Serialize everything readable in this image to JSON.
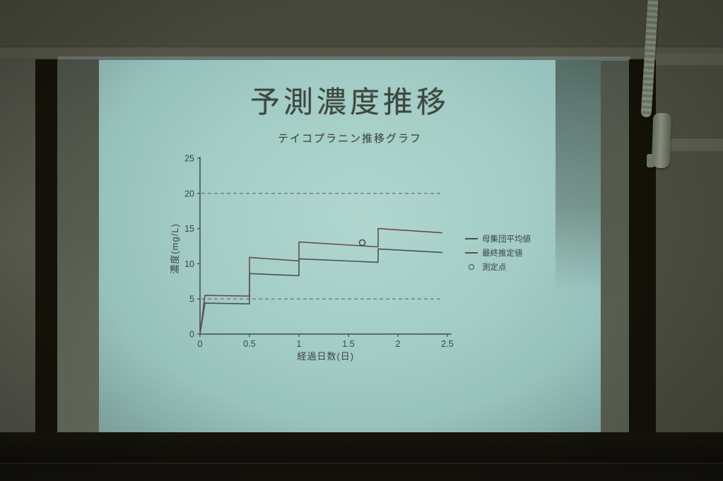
{
  "slide": {
    "title": "予測濃度推移",
    "subtitle": "テイコプラニン推移グラフ"
  },
  "chart_data": {
    "type": "line",
    "title": "予測濃度推移",
    "subtitle": "テイコプラニン推移グラフ",
    "xlabel": "経過日数(日)",
    "ylabel": "濃度(mg/L)",
    "xlim": [
      0,
      2.54
    ],
    "ylim": [
      0,
      25.2
    ],
    "xticks": [
      0,
      0.5,
      1,
      1.5,
      2,
      2.5
    ],
    "yticks": [
      0,
      5,
      10,
      15,
      20,
      25
    ],
    "grid": false,
    "legend_position": "right",
    "reference_lines": {
      "style": "dashed",
      "color": "#5f6870",
      "values": [
        5,
        20
      ]
    },
    "series": [
      {
        "name": "母集団平均値",
        "color": "#46525b",
        "points": [
          [
            0,
            0
          ],
          [
            0.05,
            4.4
          ],
          [
            0.5,
            4.3
          ],
          [
            0.5,
            8.6
          ],
          [
            1.0,
            8.3
          ],
          [
            1.0,
            10.7
          ],
          [
            1.8,
            10.2
          ],
          [
            1.8,
            12.1
          ],
          [
            2.45,
            11.6
          ]
        ]
      },
      {
        "name": "最終推定値",
        "color": "#674b52",
        "points": [
          [
            0,
            0
          ],
          [
            0.05,
            5.5
          ],
          [
            0.5,
            5.4
          ],
          [
            0.5,
            10.9
          ],
          [
            1.0,
            10.4
          ],
          [
            1.0,
            13.1
          ],
          [
            1.8,
            12.4
          ],
          [
            1.8,
            15.0
          ],
          [
            2.45,
            14.4
          ]
        ]
      }
    ],
    "measured": {
      "name": "測定点",
      "marker": "circle",
      "color": "#3f4a52",
      "points": [
        [
          1.64,
          13.0
        ]
      ]
    }
  },
  "colors": {
    "slide_bg": "#a5cec7",
    "axis": "#3f4a52",
    "axis_text": "#39444e",
    "wall": "#4c4d41",
    "screen_frame": "#141209"
  }
}
